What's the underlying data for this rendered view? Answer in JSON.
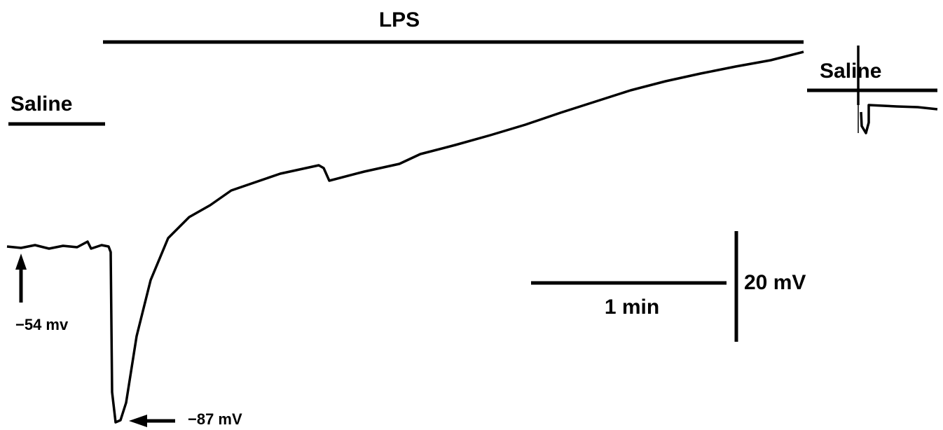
{
  "labels": {
    "lps": "LPS",
    "saline_left": "Saline",
    "saline_right": "Saline",
    "resting": "−54 mv",
    "minimum": "−87 mV",
    "time_scale": "1 min",
    "voltage_scale": "20 mV"
  }
}
